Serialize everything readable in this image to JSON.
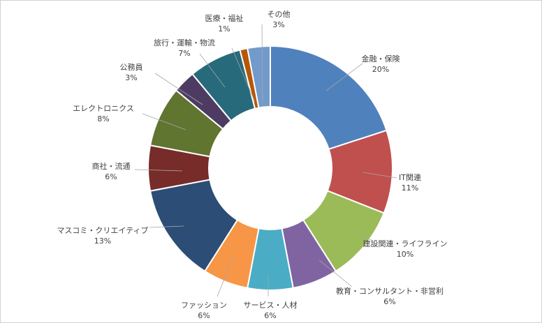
{
  "chart_data": {
    "type": "pie",
    "donut": true,
    "title": "",
    "legend": "none",
    "slices": [
      {
        "label": "金融・保険",
        "value": 20,
        "display": "20%",
        "color": "#4f81bd"
      },
      {
        "label": "IT関連",
        "value": 11,
        "display": "11%",
        "color": "#c0504d"
      },
      {
        "label": "建設関連・ライフライン",
        "value": 10,
        "display": "10%",
        "color": "#9bbb59"
      },
      {
        "label": "教育・コンサルタント・非営利",
        "value": 6,
        "display": "6%",
        "color": "#8064a2"
      },
      {
        "label": "サービス・人材",
        "value": 6,
        "display": "6%",
        "color": "#4bacc6"
      },
      {
        "label": "ファッション",
        "value": 6,
        "display": "6%",
        "color": "#f79646"
      },
      {
        "label": "マスコミ・クリエイティブ",
        "value": 13,
        "display": "13%",
        "color": "#2c4d75"
      },
      {
        "label": "商社・流通",
        "value": 6,
        "display": "6%",
        "color": "#772c2a"
      },
      {
        "label": "エレクトロニクス",
        "value": 8,
        "display": "8%",
        "color": "#5f7530"
      },
      {
        "label": "公務員",
        "value": 3,
        "display": "3%",
        "color": "#4d3b62"
      },
      {
        "label": "旅行・運輸・物流",
        "value": 7,
        "display": "7%",
        "color": "#276a7c"
      },
      {
        "label": "医療・福祉",
        "value": 1,
        "display": "1%",
        "color": "#b65708"
      },
      {
        "label": "その他",
        "value": 3,
        "display": "3%",
        "color": "#729aca"
      }
    ]
  }
}
